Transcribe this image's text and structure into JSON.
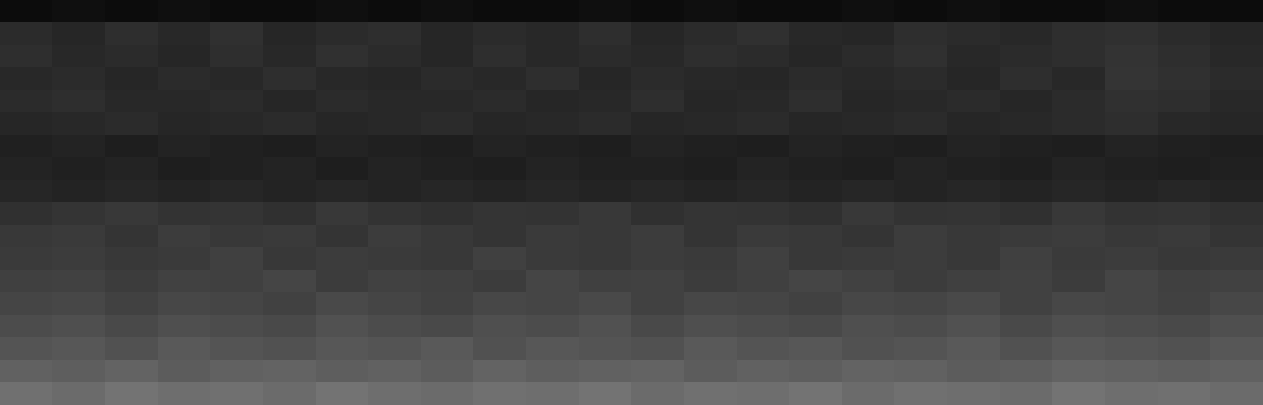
{
  "chart_data": {
    "type": "heatmap",
    "tick_labels": false,
    "color_range": [
      0,
      1
    ],
    "cells": [
      [
        0.05,
        0.06,
        0.05,
        0.06,
        0.05,
        0.05,
        0.06,
        0.05,
        0.06,
        0.05,
        0.05,
        0.06,
        0.05,
        0.06,
        0.05,
        0.05,
        0.06,
        0.05,
        0.06,
        0.05,
        0.05,
        0.06,
        0.05,
        0.05
      ],
      [
        0.17,
        0.15,
        0.18,
        0.16,
        0.19,
        0.15,
        0.17,
        0.18,
        0.15,
        0.17,
        0.16,
        0.18,
        0.15,
        0.17,
        0.19,
        0.16,
        0.15,
        0.18,
        0.17,
        0.16,
        0.18,
        0.19,
        0.17,
        0.15
      ],
      [
        0.18,
        0.16,
        0.17,
        0.15,
        0.18,
        0.16,
        0.19,
        0.17,
        0.15,
        0.18,
        0.16,
        0.17,
        0.16,
        0.18,
        0.17,
        0.15,
        0.17,
        0.19,
        0.16,
        0.17,
        0.18,
        0.2,
        0.18,
        0.16
      ],
      [
        0.16,
        0.17,
        0.15,
        0.17,
        0.16,
        0.18,
        0.16,
        0.15,
        0.17,
        0.16,
        0.18,
        0.15,
        0.17,
        0.16,
        0.15,
        0.17,
        0.16,
        0.17,
        0.15,
        0.18,
        0.16,
        0.21,
        0.19,
        0.17
      ],
      [
        0.17,
        0.18,
        0.16,
        0.16,
        0.17,
        0.15,
        0.17,
        0.16,
        0.16,
        0.17,
        0.15,
        0.16,
        0.18,
        0.15,
        0.16,
        0.18,
        0.15,
        0.16,
        0.17,
        0.15,
        0.17,
        0.19,
        0.18,
        0.16
      ],
      [
        0.15,
        0.16,
        0.17,
        0.15,
        0.16,
        0.17,
        0.15,
        0.16,
        0.17,
        0.15,
        0.16,
        0.17,
        0.15,
        0.16,
        0.17,
        0.15,
        0.16,
        0.17,
        0.15,
        0.16,
        0.17,
        0.18,
        0.16,
        0.15
      ],
      [
        0.13,
        0.14,
        0.12,
        0.14,
        0.13,
        0.12,
        0.14,
        0.13,
        0.12,
        0.14,
        0.13,
        0.12,
        0.14,
        0.13,
        0.12,
        0.14,
        0.13,
        0.12,
        0.14,
        0.13,
        0.12,
        0.14,
        0.13,
        0.12
      ],
      [
        0.14,
        0.13,
        0.14,
        0.12,
        0.13,
        0.14,
        0.12,
        0.14,
        0.13,
        0.12,
        0.14,
        0.13,
        0.13,
        0.12,
        0.14,
        0.13,
        0.12,
        0.14,
        0.13,
        0.12,
        0.14,
        0.13,
        0.12,
        0.13
      ],
      [
        0.15,
        0.14,
        0.15,
        0.14,
        0.15,
        0.14,
        0.15,
        0.14,
        0.15,
        0.14,
        0.15,
        0.14,
        0.15,
        0.14,
        0.15,
        0.14,
        0.15,
        0.14,
        0.15,
        0.14,
        0.15,
        0.14,
        0.15,
        0.14
      ],
      [
        0.19,
        0.21,
        0.22,
        0.2,
        0.21,
        0.19,
        0.22,
        0.2,
        0.19,
        0.21,
        0.2,
        0.22,
        0.19,
        0.21,
        0.2,
        0.19,
        0.22,
        0.2,
        0.21,
        0.19,
        0.22,
        0.2,
        0.21,
        0.19
      ],
      [
        0.22,
        0.23,
        0.21,
        0.24,
        0.22,
        0.23,
        0.21,
        0.24,
        0.22,
        0.21,
        0.23,
        0.22,
        0.24,
        0.21,
        0.23,
        0.22,
        0.21,
        0.24,
        0.22,
        0.23,
        0.24,
        0.22,
        0.23,
        0.21
      ],
      [
        0.23,
        0.24,
        0.22,
        0.23,
        0.25,
        0.22,
        0.24,
        0.23,
        0.22,
        0.25,
        0.23,
        0.22,
        0.24,
        0.23,
        0.25,
        0.22,
        0.23,
        0.24,
        0.22,
        0.25,
        0.23,
        0.24,
        0.22,
        0.23
      ],
      [
        0.25,
        0.26,
        0.24,
        0.26,
        0.25,
        0.27,
        0.24,
        0.26,
        0.25,
        0.24,
        0.27,
        0.25,
        0.26,
        0.24,
        0.25,
        0.27,
        0.26,
        0.24,
        0.25,
        0.26,
        0.24,
        0.27,
        0.25,
        0.26
      ],
      [
        0.27,
        0.28,
        0.26,
        0.28,
        0.27,
        0.26,
        0.29,
        0.27,
        0.26,
        0.28,
        0.27,
        0.29,
        0.26,
        0.28,
        0.27,
        0.26,
        0.28,
        0.27,
        0.29,
        0.26,
        0.28,
        0.27,
        0.26,
        0.28
      ],
      [
        0.3,
        0.31,
        0.29,
        0.31,
        0.3,
        0.29,
        0.32,
        0.3,
        0.29,
        0.31,
        0.3,
        0.32,
        0.29,
        0.31,
        0.3,
        0.29,
        0.31,
        0.3,
        0.32,
        0.29,
        0.31,
        0.3,
        0.29,
        0.31
      ],
      [
        0.33,
        0.34,
        0.32,
        0.35,
        0.33,
        0.32,
        0.34,
        0.33,
        0.35,
        0.32,
        0.34,
        0.33,
        0.32,
        0.35,
        0.33,
        0.34,
        0.32,
        0.33,
        0.35,
        0.32,
        0.34,
        0.33,
        0.32,
        0.34
      ],
      [
        0.38,
        0.37,
        0.39,
        0.36,
        0.38,
        0.39,
        0.37,
        0.38,
        0.36,
        0.39,
        0.37,
        0.38,
        0.39,
        0.36,
        0.38,
        0.37,
        0.39,
        0.38,
        0.36,
        0.37,
        0.39,
        0.38,
        0.37,
        0.38
      ],
      [
        0.44,
        0.42,
        0.45,
        0.43,
        0.44,
        0.42,
        0.45,
        0.43,
        0.42,
        0.44,
        0.43,
        0.45,
        0.42,
        0.44,
        0.43,
        0.45,
        0.42,
        0.44,
        0.43,
        0.42,
        0.45,
        0.43,
        0.44,
        0.42
      ]
    ]
  }
}
